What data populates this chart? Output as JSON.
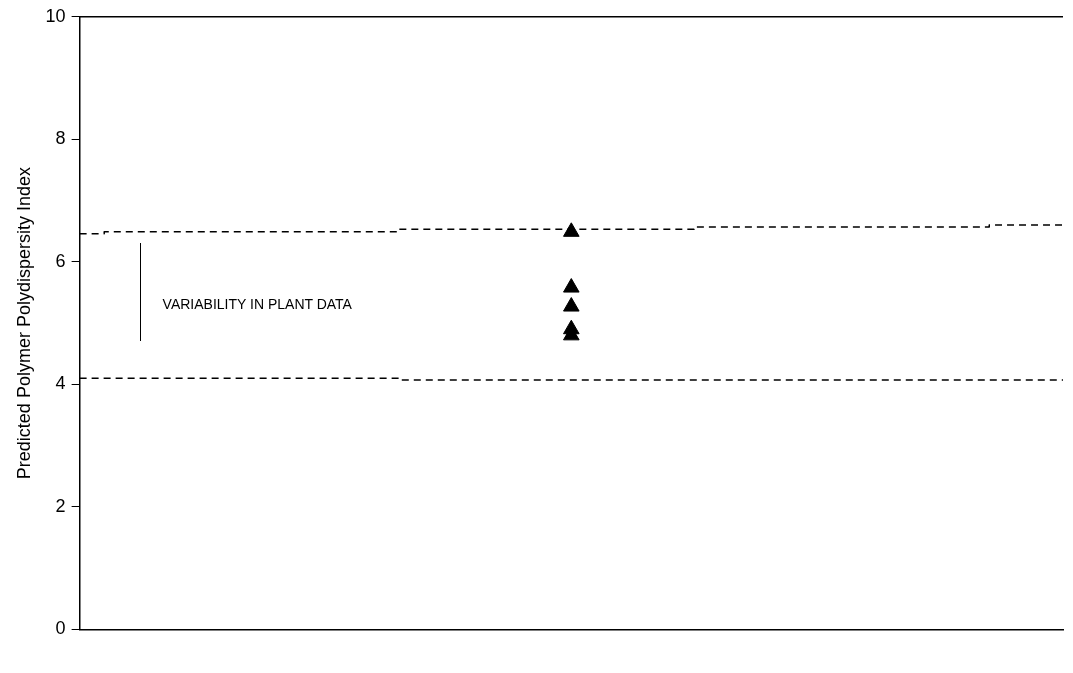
{
  "chart_data": {
    "type": "scatter",
    "ylabel": "Predicted Polymer Polydispersity Index",
    "categories": [
      null,
      null,
      null,
      null,
      null,
      null,
      null,
      null,
      null,
      null,
      null,
      null,
      null,
      null,
      null,
      null,
      null,
      null,
      null,
      null,
      null
    ],
    "ylim": [
      0,
      10
    ],
    "yticks": [
      0,
      2,
      4,
      6,
      8,
      10
    ],
    "grid": false,
    "legend": false,
    "marker": "triangle",
    "series": [
      {
        "type": "step",
        "color": "#000000",
        "line_style": "dashed",
        "marker": "none",
        "values": [
          6.46,
          6.49,
          6.49,
          6.49,
          6.49,
          6.49,
          6.49,
          6.53,
          6.53,
          6.53,
          6.53,
          6.53,
          6.53,
          6.57,
          6.57,
          6.57,
          6.57,
          6.57,
          6.57,
          6.6,
          6.6
        ]
      },
      {
        "type": "step",
        "color": "#000000",
        "line_style": "dashed",
        "marker": "none",
        "values": [
          4.1,
          4.1,
          4.1,
          4.1,
          4.1,
          4.1,
          4.1,
          4.07,
          4.07,
          4.07,
          4.07,
          4.07,
          4.07,
          4.07,
          4.07,
          4.07,
          4.07,
          4.07,
          4.07,
          4.07,
          4.07
        ]
      },
      {
        "color": "#000000",
        "values": [
          null,
          null,
          null,
          null,
          null,
          null,
          null,
          null,
          null,
          null,
          6.49,
          null,
          null,
          null,
          null,
          null,
          null,
          null,
          null,
          null,
          null
        ]
      },
      {
        "color": "#000000",
        "values": [
          null,
          null,
          null,
          null,
          null,
          null,
          null,
          null,
          null,
          null,
          5.58,
          null,
          null,
          null,
          null,
          null,
          null,
          null,
          null,
          null,
          null
        ]
      },
      {
        "color": "#000000",
        "values": [
          null,
          null,
          null,
          null,
          null,
          null,
          null,
          null,
          null,
          null,
          5.27,
          null,
          null,
          null,
          null,
          null,
          null,
          null,
          null,
          null,
          null
        ]
      },
      {
        "color": "#000000",
        "values": [
          null,
          null,
          null,
          null,
          null,
          null,
          null,
          null,
          null,
          null,
          4.9,
          null,
          null,
          null,
          null,
          null,
          null,
          null,
          null,
          null,
          null
        ]
      },
      {
        "color": "#000000",
        "values": [
          null,
          null,
          null,
          null,
          null,
          null,
          null,
          null,
          null,
          null,
          4.8,
          null,
          null,
          null,
          null,
          null,
          null,
          null,
          null,
          null,
          null
        ]
      }
    ],
    "annotations": [
      "VARIABILITY IN PLANT DATA"
    ]
  }
}
